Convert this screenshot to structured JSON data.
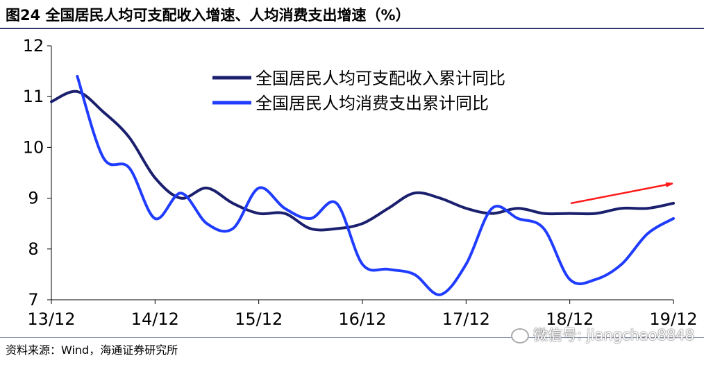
{
  "title": "图24 全国居民人均可支配收入增速、人均消费支出增速（%）",
  "source": "资料来源：Wind，海通证券研究所",
  "watermark": "微信号: jiangchao8848",
  "chart_data": {
    "type": "line",
    "x_ticks": [
      "13/12",
      "14/12",
      "15/12",
      "16/12",
      "17/12",
      "18/12",
      "19/12"
    ],
    "y_ticks": [
      7,
      8,
      9,
      10,
      11,
      12
    ],
    "ylim": [
      7,
      12
    ],
    "xlim": [
      0,
      24
    ],
    "grid": false,
    "legend_position": "top-center",
    "annotation": "red arrow indicating upward trend",
    "series": [
      {
        "name": "全国居民人均可支配收入累计同比",
        "color": "#1a1f6e",
        "x": [
          0,
          1,
          2,
          3,
          4,
          5,
          6,
          7,
          8,
          9,
          10,
          11,
          12,
          13,
          14,
          15,
          16,
          17,
          18,
          19,
          20,
          21,
          22,
          23,
          24
        ],
        "values": [
          10.9,
          11.1,
          10.7,
          10.2,
          9.4,
          9.0,
          9.2,
          8.9,
          8.7,
          8.7,
          8.4,
          8.4,
          8.5,
          8.8,
          9.1,
          9.0,
          8.8,
          8.7,
          8.8,
          8.7,
          8.7,
          8.7,
          8.8,
          8.8,
          8.9
        ]
      },
      {
        "name": "全国居民人均消费支出累计同比",
        "color": "#1f3cff",
        "x": [
          1,
          2,
          3,
          4,
          5,
          6,
          7,
          8,
          9,
          10,
          11,
          12,
          13,
          14,
          15,
          16,
          17,
          18,
          19,
          20,
          21,
          22,
          23,
          24
        ],
        "values": [
          11.4,
          9.8,
          9.6,
          8.6,
          9.1,
          8.5,
          8.4,
          9.2,
          8.8,
          8.6,
          8.9,
          7.7,
          7.6,
          7.5,
          7.1,
          7.7,
          8.8,
          8.6,
          8.4,
          7.4,
          7.4,
          7.7,
          8.3,
          8.6
        ]
      }
    ]
  }
}
